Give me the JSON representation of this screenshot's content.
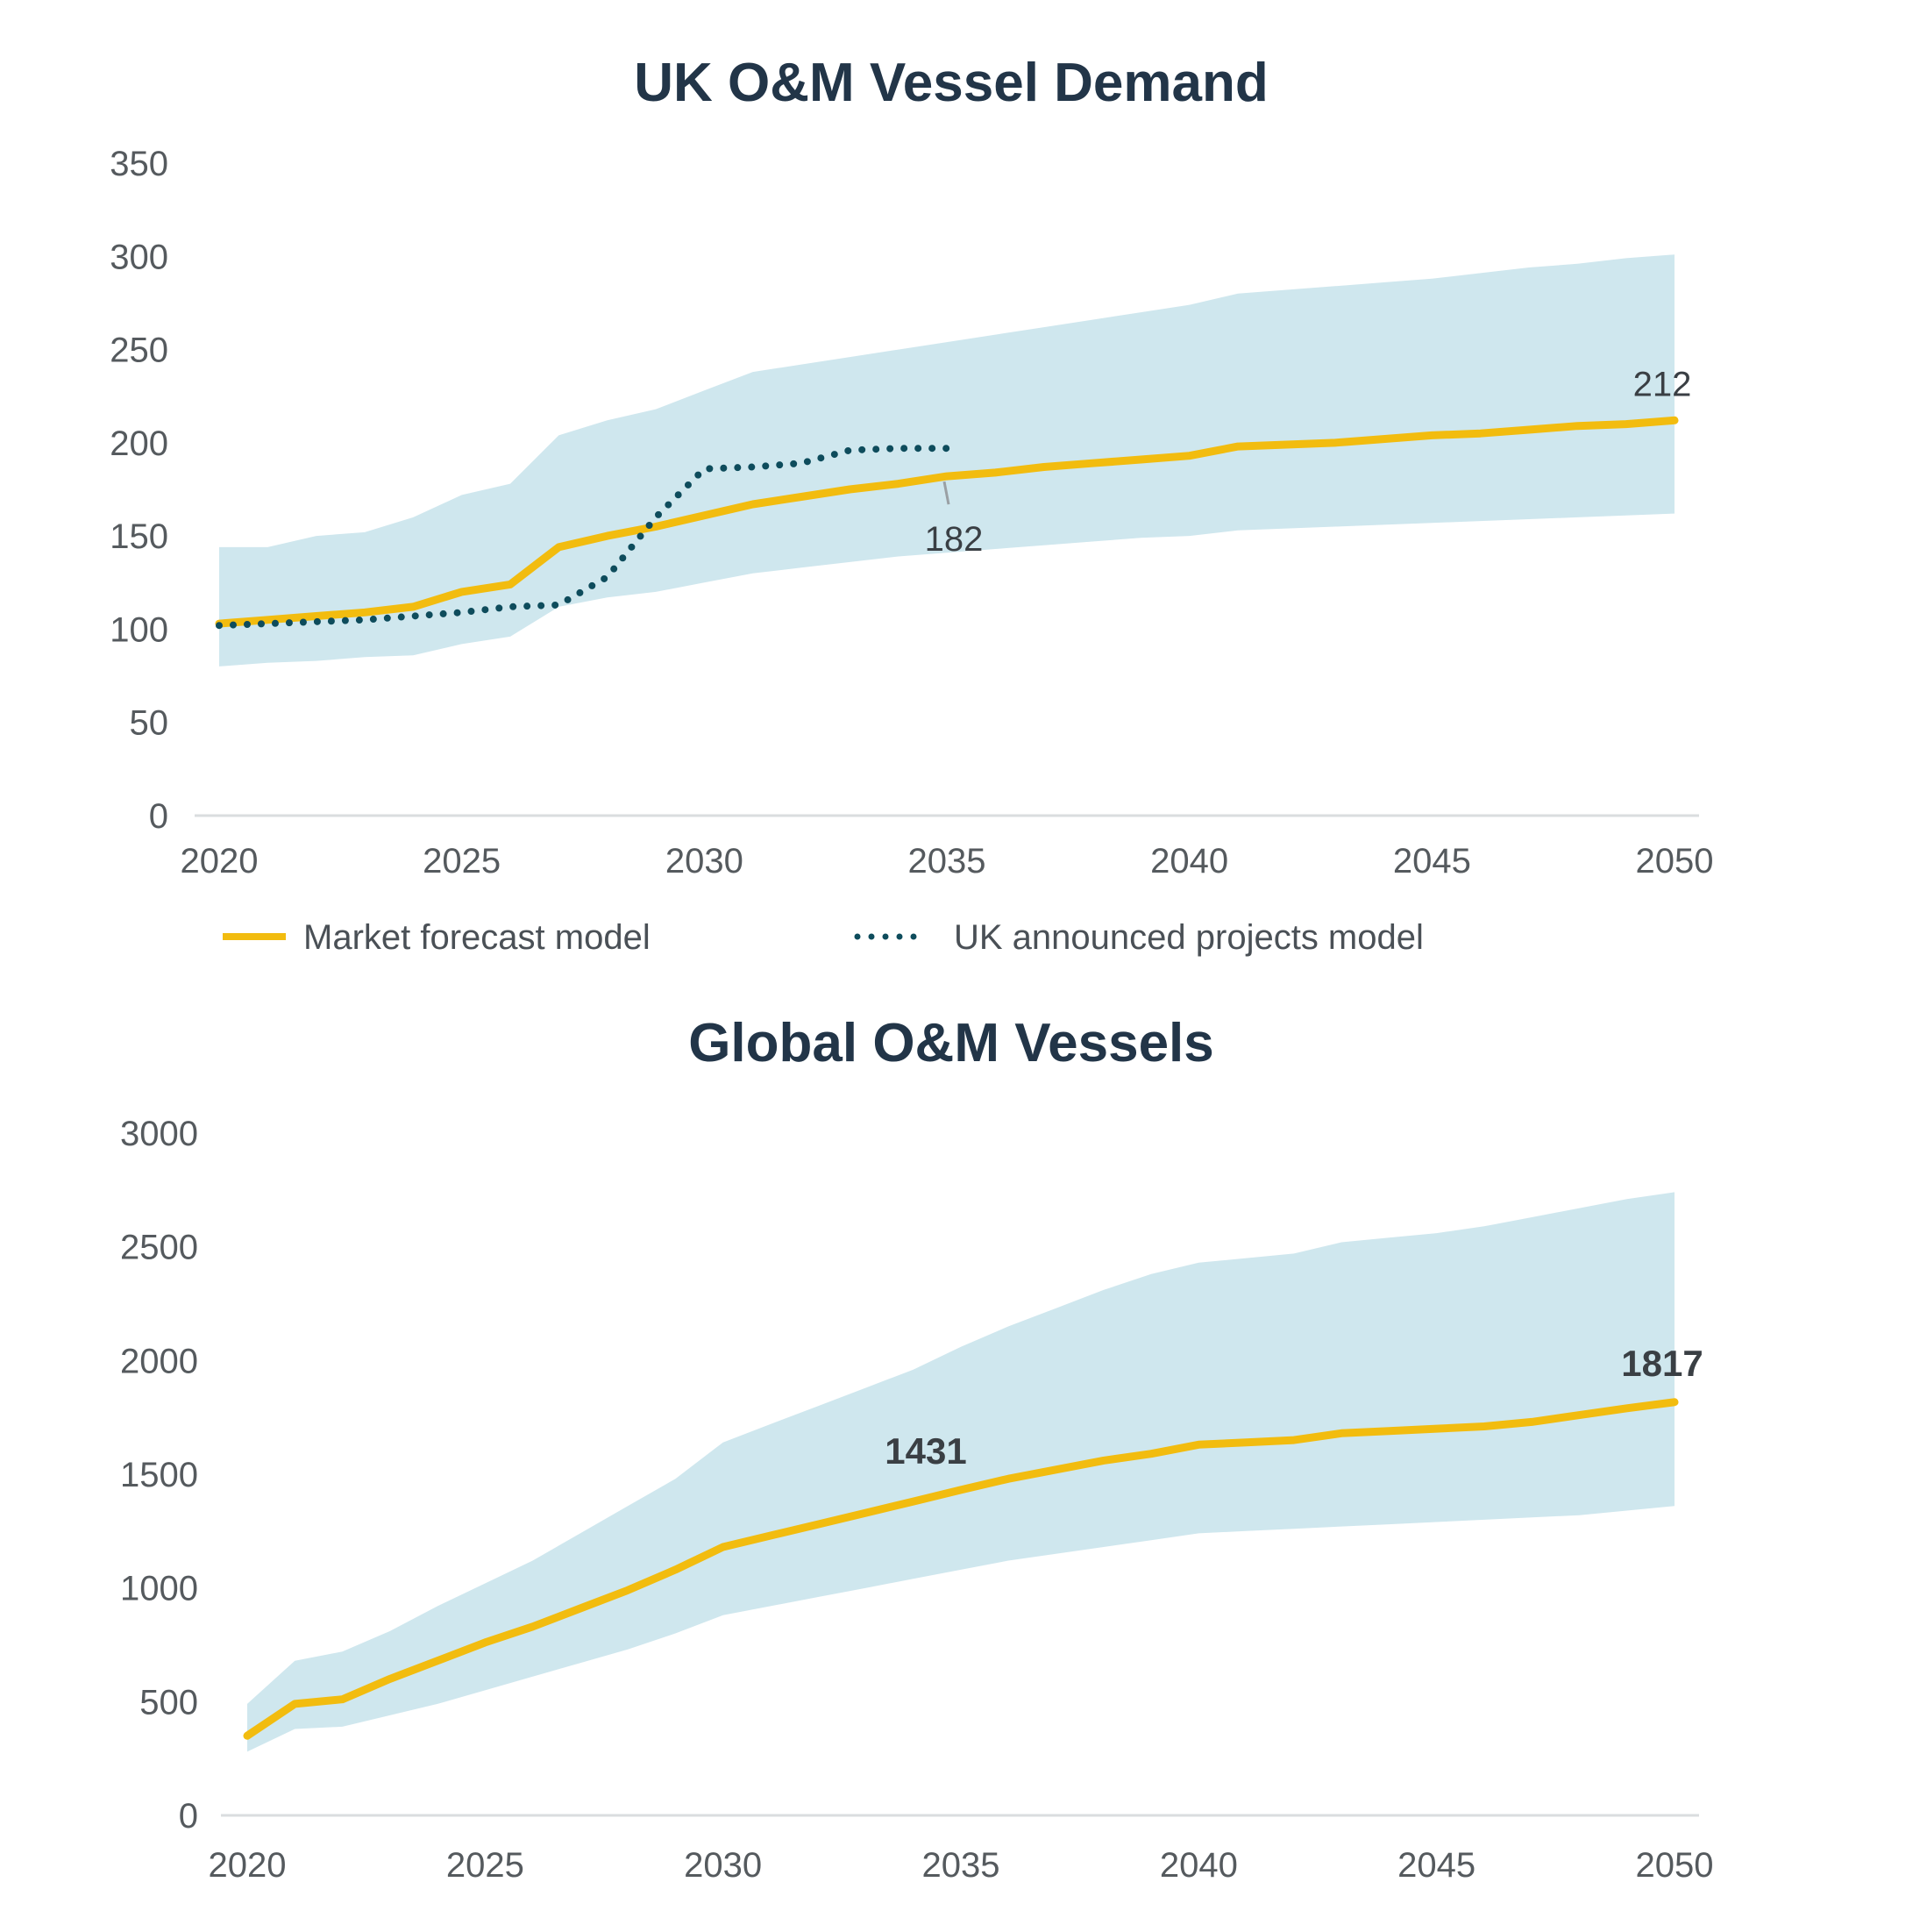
{
  "colors": {
    "forecast": "#F2BC0F",
    "announced": "#0E4C5C",
    "band": "#CFE7EE",
    "axis": "#DADDDF"
  },
  "chart_data": [
    {
      "type": "line",
      "title": "UK O&M Vessel Demand",
      "xlim": [
        2020,
        2050
      ],
      "ylim": [
        0,
        350
      ],
      "x_ticks": [
        "2020",
        "2025",
        "2030",
        "2035",
        "2040",
        "2045",
        "2050"
      ],
      "y_ticks": [
        "0",
        "50",
        "100",
        "150",
        "200",
        "250",
        "300",
        "350"
      ],
      "legend": [
        "Market forecast model",
        "UK announced projects model"
      ],
      "band": {
        "x": [
          2020,
          2021,
          2022,
          2023,
          2024,
          2025,
          2026,
          2027,
          2028,
          2029,
          2030,
          2031,
          2032,
          2033,
          2034,
          2035,
          2036,
          2037,
          2038,
          2039,
          2040,
          2041,
          2042,
          2043,
          2044,
          2045,
          2046,
          2047,
          2048,
          2049,
          2050
        ],
        "upper": [
          144,
          144,
          150,
          152,
          160,
          172,
          178,
          204,
          212,
          218,
          228,
          238,
          242,
          246,
          250,
          254,
          258,
          262,
          266,
          270,
          274,
          280,
          282,
          284,
          286,
          288,
          291,
          294,
          296,
          299,
          301
        ],
        "lower": [
          80,
          82,
          83,
          85,
          86,
          92,
          96,
          112,
          117,
          120,
          125,
          130,
          133,
          136,
          139,
          141,
          143,
          145,
          147,
          149,
          150,
          153,
          154,
          155,
          156,
          157,
          158,
          159,
          160,
          161,
          162
        ]
      },
      "series": [
        {
          "name": "Market forecast model",
          "x": [
            2020,
            2021,
            2022,
            2023,
            2024,
            2025,
            2026,
            2027,
            2028,
            2029,
            2030,
            2031,
            2032,
            2033,
            2034,
            2035,
            2036,
            2037,
            2038,
            2039,
            2040,
            2041,
            2042,
            2043,
            2044,
            2045,
            2046,
            2047,
            2048,
            2049,
            2050
          ],
          "values": [
            103,
            105,
            107,
            109,
            112,
            120,
            124,
            144,
            150,
            155,
            161,
            167,
            171,
            175,
            178,
            182,
            184,
            187,
            189,
            191,
            193,
            198,
            199,
            200,
            202,
            204,
            205,
            207,
            209,
            210,
            212
          ]
        },
        {
          "name": "UK announced projects model",
          "style": "dotted",
          "x": [
            2020,
            2021,
            2022,
            2023,
            2024,
            2025,
            2026,
            2027,
            2028,
            2029,
            2030,
            2031,
            2032,
            2033,
            2034,
            2035
          ],
          "values": [
            102,
            103,
            104,
            105,
            107,
            109,
            112,
            113,
            128,
            160,
            186,
            187,
            189,
            196,
            197,
            197
          ]
        }
      ],
      "annotations": [
        {
          "text": "182",
          "x": 2035,
          "y": 182,
          "bold": false
        },
        {
          "text": "212",
          "x": 2050,
          "y": 212,
          "bold": false
        }
      ]
    },
    {
      "type": "line",
      "title": "Global O&M Vessels",
      "xlim": [
        2020,
        2050
      ],
      "ylim": [
        0,
        3000
      ],
      "x_ticks": [
        "2020",
        "2025",
        "2030",
        "2035",
        "2040",
        "2045",
        "2050"
      ],
      "y_ticks": [
        "0",
        "500",
        "1000",
        "1500",
        "2000",
        "2500",
        "3000"
      ],
      "band": {
        "x": [
          2020,
          2021,
          2022,
          2023,
          2024,
          2025,
          2026,
          2027,
          2028,
          2029,
          2030,
          2031,
          2032,
          2033,
          2034,
          2035,
          2036,
          2037,
          2038,
          2039,
          2040,
          2041,
          2042,
          2043,
          2044,
          2045,
          2046,
          2047,
          2048,
          2049,
          2050
        ],
        "upper": [
          490,
          680,
          720,
          810,
          920,
          1020,
          1120,
          1240,
          1360,
          1480,
          1640,
          1720,
          1800,
          1880,
          1960,
          2060,
          2150,
          2230,
          2310,
          2380,
          2430,
          2450,
          2470,
          2520,
          2540,
          2560,
          2590,
          2630,
          2670,
          2710,
          2740
        ],
        "lower": [
          280,
          380,
          390,
          440,
          490,
          550,
          610,
          670,
          730,
          800,
          880,
          920,
          960,
          1000,
          1040,
          1080,
          1120,
          1150,
          1180,
          1210,
          1240,
          1250,
          1260,
          1270,
          1280,
          1290,
          1300,
          1310,
          1320,
          1340,
          1360
        ]
      },
      "series": [
        {
          "name": "Market forecast model",
          "x": [
            2020,
            2021,
            2022,
            2023,
            2024,
            2025,
            2026,
            2027,
            2028,
            2029,
            2030,
            2031,
            2032,
            2033,
            2034,
            2035,
            2036,
            2037,
            2038,
            2039,
            2040,
            2041,
            2042,
            2043,
            2044,
            2045,
            2046,
            2047,
            2048,
            2049,
            2050
          ],
          "values": [
            350,
            490,
            510,
            600,
            680,
            760,
            830,
            910,
            990,
            1080,
            1180,
            1230,
            1280,
            1330,
            1380,
            1431,
            1480,
            1520,
            1560,
            1590,
            1630,
            1640,
            1650,
            1680,
            1690,
            1700,
            1710,
            1730,
            1760,
            1790,
            1817
          ]
        }
      ],
      "annotations": [
        {
          "text": "1431",
          "x": 2035,
          "y": 1431,
          "bold": true
        },
        {
          "text": "1817",
          "x": 2050,
          "y": 1817,
          "bold": true
        }
      ]
    }
  ]
}
